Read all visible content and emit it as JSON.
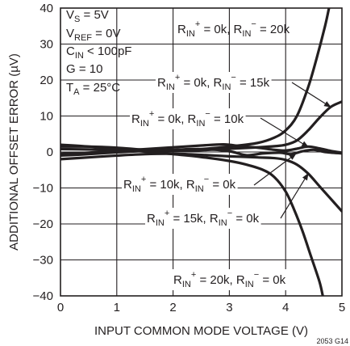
{
  "chart_data": {
    "type": "line",
    "xlabel": "INPUT COMMON MODE VOLTAGE (V)",
    "ylabel": "ADDITIONAL OFFSET ERROR (µV)",
    "xlim": [
      0,
      5
    ],
    "ylim": [
      -40,
      40
    ],
    "x_ticks": [
      0,
      1,
      2,
      3,
      4,
      5
    ],
    "y_ticks": [
      40,
      30,
      20,
      10,
      0,
      -10,
      -20,
      -30,
      -40
    ],
    "x_tick_labels": [
      "0",
      "1",
      "2",
      "3",
      "4",
      "5"
    ],
    "y_tick_labels": [
      "40",
      "30",
      "20",
      "10",
      "0",
      "−10",
      "−20",
      "−30",
      "−40"
    ],
    "grid": true,
    "conditions": [
      {
        "main": "V",
        "sub": "S",
        "rest": " = 5V"
      },
      {
        "main": "V",
        "sub": "REF",
        "rest": " = 0V"
      },
      {
        "main": "C",
        "sub": "IN",
        "rest": " < 100pF"
      },
      {
        "main": "G = 10",
        "sub": "",
        "rest": ""
      },
      {
        "main": "T",
        "sub": "A",
        "rest": " = 25°C"
      }
    ],
    "series": [
      {
        "name": "R_IN+ = 0k, R_IN− = 20k",
        "x": [
          0,
          0.5,
          1,
          1.5,
          2,
          2.5,
          3,
          3.5,
          3.8,
          4.0,
          4.2,
          4.4,
          4.55,
          4.7,
          4.77
        ],
        "y": [
          1.5,
          1.5,
          1.2,
          0.6,
          0.3,
          0.8,
          1.5,
          2.5,
          4,
          6,
          10,
          18,
          26,
          35,
          40
        ]
      },
      {
        "name": "R_IN+ = 0k, R_IN− = 15k",
        "x": [
          0,
          0.5,
          1,
          1.5,
          2,
          2.5,
          3,
          3.5,
          3.8,
          4.0,
          4.2,
          4.4,
          4.6,
          4.8,
          5.0
        ],
        "y": [
          0.8,
          0.7,
          0.5,
          0.2,
          0.3,
          0.5,
          0.9,
          1.3,
          1.6,
          2.0,
          3.2,
          6.0,
          9.5,
          12.5,
          14
        ]
      },
      {
        "name": "R_IN+ = 0k, R_IN− = 10k",
        "x": [
          0,
          0.5,
          1,
          1.5,
          2,
          2.5,
          2.9,
          3.2,
          3.5,
          3.8,
          4.0,
          4.2,
          4.4,
          4.6,
          4.8,
          5.0
        ],
        "y": [
          -0.5,
          -0.2,
          0.3,
          0.8,
          1.3,
          1.8,
          2.1,
          1.6,
          1.2,
          0.6,
          0.4,
          0.9,
          1.5,
          1.0,
          0.3,
          -0.2
        ]
      },
      {
        "name": "R_IN+ = 10k, R_IN− = 0k",
        "x": [
          0,
          0.5,
          1,
          1.5,
          2,
          2.5,
          3,
          3.3,
          3.6,
          3.9,
          4.1,
          4.3,
          4.5,
          4.7,
          5.0
        ],
        "y": [
          -1.0,
          -0.6,
          -0.1,
          0.3,
          0.6,
          0.8,
          0.2,
          -0.9,
          -0.4,
          -0.2,
          -0.6,
          0.2,
          0.6,
          0.0,
          -0.4
        ]
      },
      {
        "name": "R_IN+ = 15k, R_IN− = 0k",
        "x": [
          0,
          0.5,
          1,
          1.5,
          2,
          2.5,
          3,
          3.5,
          3.8,
          4.0,
          4.2,
          4.4,
          4.6,
          4.8,
          5.0
        ],
        "y": [
          -2.0,
          -1.5,
          -1.0,
          -0.6,
          -0.5,
          -0.8,
          -1.2,
          -1.5,
          -1.7,
          -2.2,
          -3.5,
          -6.0,
          -9.5,
          -13,
          -16.5
        ]
      },
      {
        "name": "R_IN+ = 20k, R_IN− = 0k",
        "x": [
          0,
          0.5,
          1,
          1.5,
          2,
          2.5,
          3,
          3.3,
          3.6,
          3.8,
          4.0,
          4.15,
          4.3,
          4.45,
          4.6,
          4.66
        ],
        "y": [
          2.0,
          1.5,
          0.8,
          0.1,
          -0.6,
          -1.4,
          -2.5,
          -3.5,
          -5,
          -7,
          -11,
          -16,
          -22,
          -29,
          -36,
          -40
        ]
      }
    ],
    "annotations": [
      {
        "rp": "0k",
        "rm": "20k"
      },
      {
        "rp": "0k",
        "rm": "15k"
      },
      {
        "rp": "0k",
        "rm": "10k"
      },
      {
        "rp": "10k",
        "rm": "0k"
      },
      {
        "rp": "15k",
        "rm": "0k"
      },
      {
        "rp": "20k",
        "rm": "0k"
      }
    ],
    "annotation_parts": {
      "r": "R",
      "in": "IN",
      "plus": "+",
      "minus": "−",
      "eq1": " = ",
      "sep": ", ",
      "eq2": " = "
    },
    "figure_code": "2053 G14"
  }
}
